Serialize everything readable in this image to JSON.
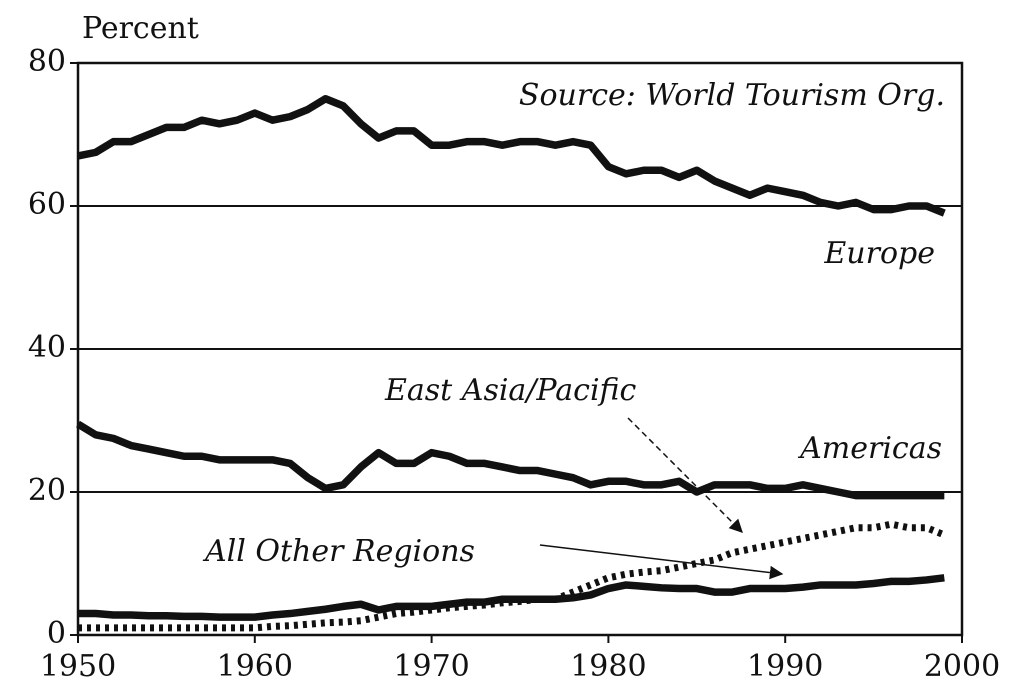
{
  "chart_data": {
    "type": "line",
    "y_label": "Percent",
    "annotation": "Source: World Tourism Org.",
    "x": [
      1950,
      1951,
      1952,
      1953,
      1954,
      1955,
      1956,
      1957,
      1958,
      1959,
      1960,
      1961,
      1962,
      1963,
      1964,
      1965,
      1966,
      1967,
      1968,
      1969,
      1970,
      1971,
      1972,
      1973,
      1974,
      1975,
      1976,
      1977,
      1978,
      1979,
      1980,
      1981,
      1982,
      1983,
      1984,
      1985,
      1986,
      1987,
      1988,
      1989,
      1990,
      1991,
      1992,
      1993,
      1994,
      1995,
      1996,
      1997,
      1998,
      1999
    ],
    "series": [
      {
        "name": "Europe",
        "color": "#111111",
        "style": "solid",
        "values": [
          67,
          67.5,
          69,
          69,
          70,
          71,
          71,
          72,
          71.5,
          72,
          73,
          72,
          72.5,
          73.5,
          75,
          74,
          71.5,
          69.5,
          70.5,
          70.5,
          68.5,
          68.5,
          69,
          69,
          68.5,
          69,
          69,
          68.5,
          69,
          68.5,
          65.5,
          64.5,
          65,
          65,
          64,
          65,
          63.5,
          62.5,
          61.5,
          62.5,
          62,
          61.5,
          60.5,
          60,
          60.5,
          59.5,
          59.5,
          60,
          60,
          59
        ]
      },
      {
        "name": "Americas",
        "color": "#111111",
        "style": "solid",
        "values": [
          29.5,
          28,
          27.5,
          26.5,
          26,
          25.5,
          25,
          25,
          24.5,
          24.5,
          24.5,
          24.5,
          24,
          22,
          20.5,
          21,
          23.5,
          25.5,
          24,
          24,
          25.5,
          25,
          24,
          24,
          23.5,
          23,
          23,
          22.5,
          22,
          21,
          21.5,
          21.5,
          21,
          21,
          21.5,
          20,
          21,
          21,
          21,
          20.5,
          20.5,
          21,
          20.5,
          20,
          19.5,
          19.5,
          19.5,
          19.5,
          19.5,
          19.5
        ]
      },
      {
        "name": "East Asia/Pacific",
        "color": "#111111",
        "style": "dotted",
        "values": [
          1,
          1,
          1,
          1,
          1,
          1,
          1,
          1,
          1,
          1,
          1,
          1.2,
          1.3,
          1.5,
          1.7,
          1.8,
          2,
          2.5,
          3,
          3.2,
          3.5,
          3.8,
          4,
          4.2,
          4.5,
          4.7,
          5,
          5,
          6,
          7,
          8,
          8.5,
          8.8,
          9,
          9.5,
          10,
          10.5,
          11.5,
          12,
          12.5,
          13,
          13.5,
          14,
          14.5,
          15,
          15,
          15.5,
          15,
          15,
          14
        ]
      },
      {
        "name": "All Other Regions",
        "color": "#111111",
        "style": "solid",
        "values": [
          3,
          3,
          2.8,
          2.8,
          2.7,
          2.7,
          2.6,
          2.6,
          2.5,
          2.5,
          2.5,
          2.8,
          3,
          3.3,
          3.6,
          4,
          4.3,
          3.5,
          4,
          4,
          4,
          4.3,
          4.6,
          4.6,
          5,
          5,
          5,
          5,
          5.2,
          5.6,
          6.5,
          7,
          6.8,
          6.6,
          6.5,
          6.5,
          6,
          6,
          6.5,
          6.5,
          6.5,
          6.7,
          7,
          7,
          7,
          7.2,
          7.5,
          7.5,
          7.7,
          8
        ]
      }
    ],
    "xlim": [
      1950,
      2000
    ],
    "xticks": [
      1950,
      1960,
      1970,
      1980,
      1990,
      2000
    ],
    "ylim": [
      0,
      80
    ],
    "yticks": [
      0,
      20,
      40,
      60,
      80
    ],
    "grid": true
  }
}
